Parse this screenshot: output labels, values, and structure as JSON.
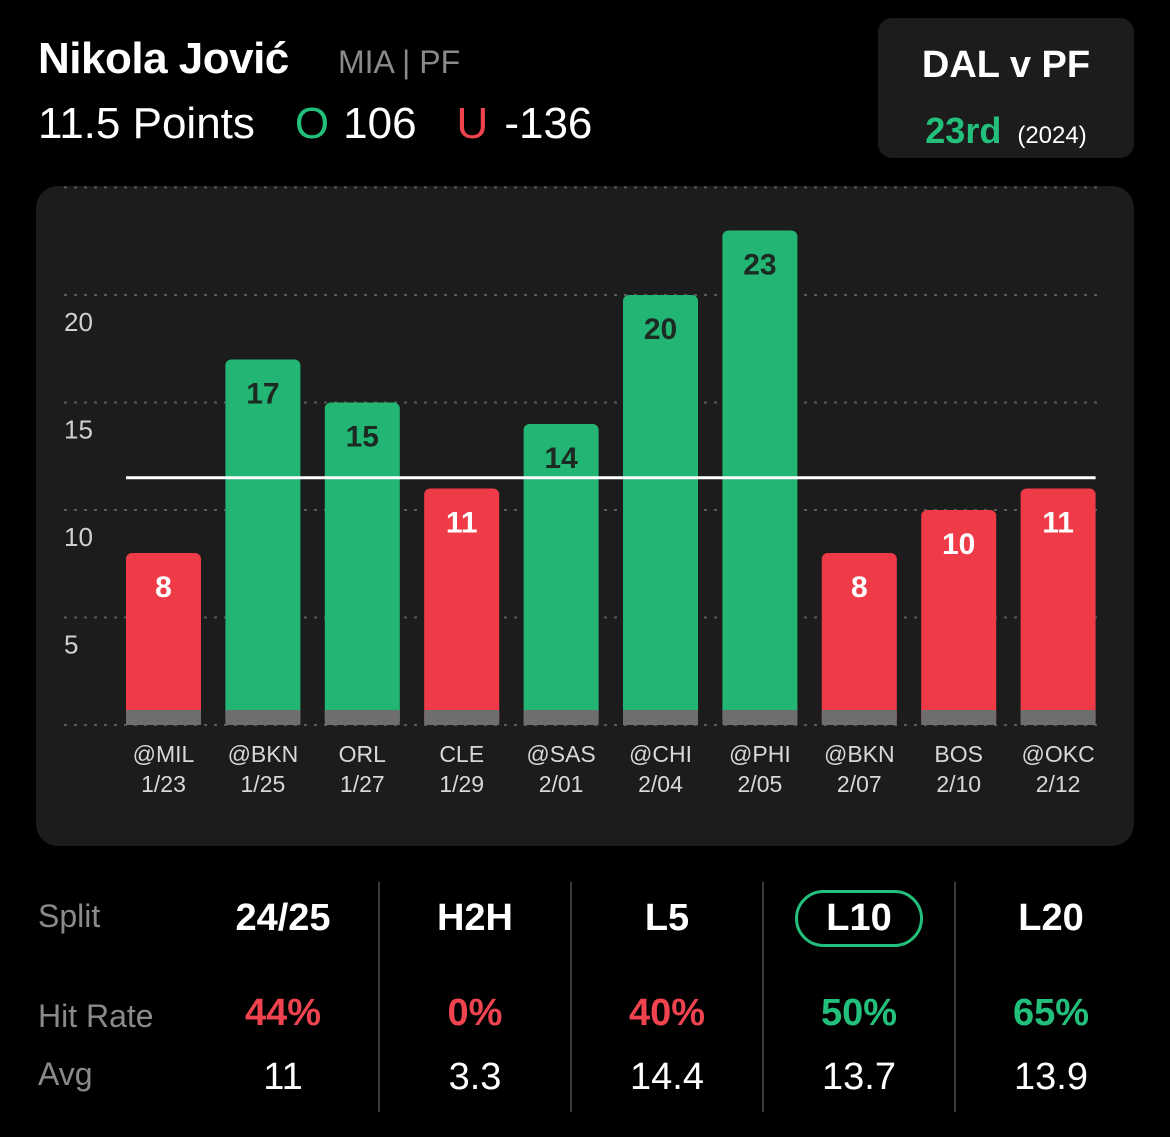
{
  "header": {
    "player_name": "Nikola Jović",
    "team_position": "MIA | PF",
    "line": "11.5 Points",
    "over_letter": "O",
    "over_odds": "106",
    "under_letter": "U",
    "under_odds": "-136"
  },
  "matchup": {
    "title": "DAL v PF",
    "rank": "23rd",
    "season": "(2024)"
  },
  "colors": {
    "over": "#22b573",
    "under": "#ef3b48",
    "accent_green": "#22c07a",
    "accent_red": "#ef4450"
  },
  "chart_data": {
    "type": "bar",
    "categories": [
      "@MIL",
      "@BKN",
      "ORL",
      "CLE",
      "@SAS",
      "@CHI",
      "@PHI",
      "@BKN",
      "BOS",
      "@OKC"
    ],
    "dates": [
      "1/23",
      "1/25",
      "1/27",
      "1/29",
      "2/01",
      "2/04",
      "2/05",
      "2/07",
      "2/10",
      "2/12"
    ],
    "values": [
      8,
      17,
      15,
      11,
      14,
      20,
      23,
      8,
      10,
      11
    ],
    "data_labels": [
      "8",
      "17",
      "15",
      "11",
      "14",
      "20",
      "23",
      "8",
      "10",
      "11"
    ],
    "threshold": 11.5,
    "yticks": [
      5,
      10,
      15,
      20
    ],
    "ytick_labels": [
      "5",
      "10",
      "15",
      "20"
    ],
    "ylim": [
      0,
      23
    ],
    "grid": true,
    "title": "",
    "xlabel": "",
    "ylabel": ""
  },
  "splits": {
    "split_label": "Split",
    "hit_rate_label": "Hit Rate",
    "avg_label": "Avg",
    "columns": [
      {
        "name": "24/25",
        "hit_rate": "44%",
        "avg": "11",
        "hit_color": "red",
        "selected": false
      },
      {
        "name": "H2H",
        "hit_rate": "0%",
        "avg": "3.3",
        "hit_color": "red",
        "selected": false
      },
      {
        "name": "L5",
        "hit_rate": "40%",
        "avg": "14.4",
        "hit_color": "red",
        "selected": false
      },
      {
        "name": "L10",
        "hit_rate": "50%",
        "avg": "13.7",
        "hit_color": "green",
        "selected": true
      },
      {
        "name": "L20",
        "hit_rate": "65%",
        "avg": "13.9",
        "hit_color": "green",
        "selected": false
      }
    ]
  }
}
